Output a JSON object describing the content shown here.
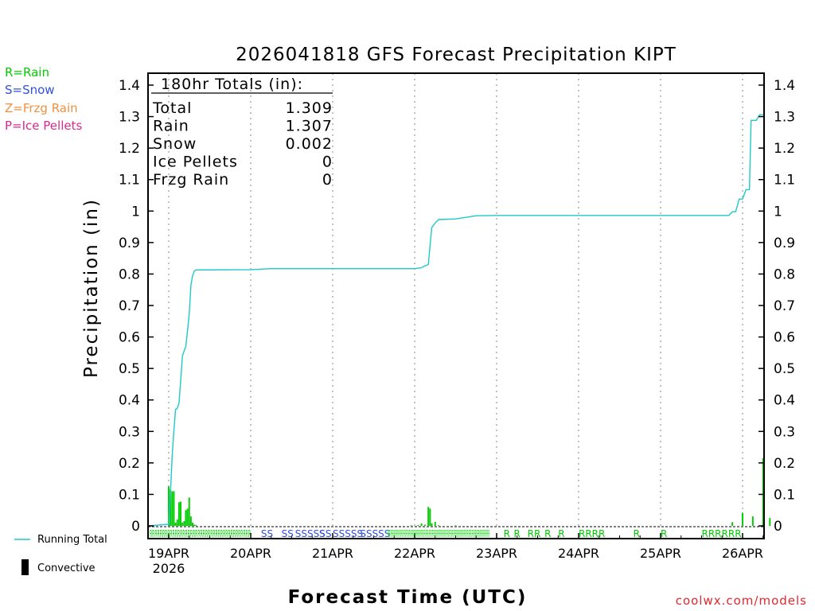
{
  "chart_data": {
    "type": "bar",
    "title": "2026041818 GFS Forecast Precipitation KIPT",
    "xlabel": "Forecast Time (UTC)",
    "ylabel": "Precipitation (in)",
    "ylim": [
      0,
      1.4
    ],
    "yticks": [
      "0",
      "0.1",
      "0.2",
      "0.3",
      "0.4",
      "0.5",
      "0.6",
      "0.7",
      "0.8",
      "0.9",
      "1",
      "1.1",
      "1.2",
      "1.3",
      "1.4"
    ],
    "x_range_hours": [
      0,
      180
    ],
    "xticks": [
      {
        "hour": 6,
        "label": "19APR"
      },
      {
        "hour": 30,
        "label": "20APR"
      },
      {
        "hour": 54,
        "label": "21APR"
      },
      {
        "hour": 78,
        "label": "22APR"
      },
      {
        "hour": 102,
        "label": "23APR"
      },
      {
        "hour": 126,
        "label": "24APR"
      },
      {
        "hour": 150,
        "label": "25APR"
      },
      {
        "hour": 174,
        "label": "26APR"
      }
    ],
    "year_label": "2026",
    "type_legend": [
      {
        "text": "R=Rain",
        "color": "#00cc00"
      },
      {
        "text": "S=Snow",
        "color": "#3050e0"
      },
      {
        "text": "Z=Frzg Rain",
        "color": "#f09040"
      },
      {
        "text": "P=Ice Pellets",
        "color": "#e02890"
      }
    ],
    "series_legend": {
      "running_total": "Running Total",
      "convective": "Convective"
    },
    "totals": {
      "header": "180hr Totals (in):",
      "rows": [
        {
          "label": "Total",
          "value": "1.309"
        },
        {
          "label": "Rain",
          "value": "1.307"
        },
        {
          "label": "Snow",
          "value": "0.002"
        },
        {
          "label": "Ice Pellets",
          "value": "0"
        },
        {
          "label": "Frzg Rain",
          "value": "0"
        }
      ]
    },
    "bars": [
      {
        "hour": 6.0,
        "value": 0.125
      },
      {
        "hour": 6.5,
        "value": 0.115
      },
      {
        "hour": 7.0,
        "value": 0.11
      },
      {
        "hour": 7.5,
        "value": 0.11
      },
      {
        "hour": 8.0,
        "value": 0.01
      },
      {
        "hour": 8.5,
        "value": 0.02
      },
      {
        "hour": 9.0,
        "value": 0.075
      },
      {
        "hour": 9.5,
        "value": 0.077
      },
      {
        "hour": 10.0,
        "value": 0.01
      },
      {
        "hour": 10.5,
        "value": 0.015
      },
      {
        "hour": 11.0,
        "value": 0.05
      },
      {
        "hour": 11.5,
        "value": 0.055
      },
      {
        "hour": 12.0,
        "value": 0.09
      },
      {
        "hour": 12.5,
        "value": 0.03
      },
      {
        "hour": 13.0,
        "value": 0.01
      },
      {
        "hour": 13.5,
        "value": 0.004
      },
      {
        "hour": 14.0,
        "value": 0.003
      },
      {
        "hour": 77.0,
        "value": 0.002
      },
      {
        "hour": 79.0,
        "value": 0.003
      },
      {
        "hour": 80.0,
        "value": 0.008
      },
      {
        "hour": 81.0,
        "value": 0.004
      },
      {
        "hour": 82.0,
        "value": 0.06
      },
      {
        "hour": 82.5,
        "value": 0.055
      },
      {
        "hour": 83.0,
        "value": 0.008
      },
      {
        "hour": 84.0,
        "value": 0.013
      },
      {
        "hour": 85.0,
        "value": 0.002
      },
      {
        "hour": 90.0,
        "value": 0.002
      },
      {
        "hour": 171.0,
        "value": 0.012
      },
      {
        "hour": 174.0,
        "value": 0.042
      },
      {
        "hour": 177.0,
        "value": 0.03
      },
      {
        "hour": 180.0,
        "value": 0.215
      },
      {
        "hour": 182.0,
        "value": 0.025
      }
    ],
    "running_total": [
      [
        0,
        0
      ],
      [
        6,
        0.005
      ],
      [
        6.5,
        0.1
      ],
      [
        7,
        0.22
      ],
      [
        7.5,
        0.3
      ],
      [
        8,
        0.37
      ],
      [
        8.5,
        0.373
      ],
      [
        9,
        0.39
      ],
      [
        9.5,
        0.46
      ],
      [
        10,
        0.54
      ],
      [
        10.5,
        0.555
      ],
      [
        11,
        0.57
      ],
      [
        11.5,
        0.62
      ],
      [
        12,
        0.675
      ],
      [
        12.5,
        0.765
      ],
      [
        13,
        0.795
      ],
      [
        13.5,
        0.81
      ],
      [
        14,
        0.813
      ],
      [
        30,
        0.814
      ],
      [
        36,
        0.817
      ],
      [
        78,
        0.817
      ],
      [
        80,
        0.82
      ],
      [
        81,
        0.826
      ],
      [
        82,
        0.83
      ],
      [
        82.5,
        0.89
      ],
      [
        83,
        0.948
      ],
      [
        84,
        0.962
      ],
      [
        85,
        0.973
      ],
      [
        90,
        0.975
      ],
      [
        96,
        0.985
      ],
      [
        102,
        0.986
      ],
      [
        170,
        0.986
      ],
      [
        171,
        0.998
      ],
      [
        172,
        0.998
      ],
      [
        173,
        1.038
      ],
      [
        174,
        1.038
      ],
      [
        175,
        1.068
      ],
      [
        176,
        1.068
      ],
      [
        176.5,
        1.288
      ],
      [
        178,
        1.288
      ],
      [
        179,
        1.306
      ],
      [
        180,
        1.306
      ]
    ],
    "precip_type_row": [
      {
        "hour": 0,
        "text": "RRRRRRRRRRRRRRRRRRRRRRRRRRRRRRRRRRRRRRRR",
        "color": "#00cc00",
        "span": 30
      },
      {
        "hour": 33,
        "text": "SS",
        "color": "#3050e0"
      },
      {
        "hour": 39,
        "text": "SS",
        "color": "#3050e0"
      },
      {
        "hour": 43,
        "text": "SSSSSS",
        "color": "#3050e0"
      },
      {
        "hour": 50,
        "text": "S",
        "color": "#3050e0"
      },
      {
        "hour": 54,
        "text": "SSSSS",
        "color": "#3050e0"
      },
      {
        "hour": 62,
        "text": "SSSSS",
        "color": "#3050e0"
      },
      {
        "hour": 70,
        "text": "RRRRRRRRRRRRRRRRRRRRRRRRRRRRRRRRRRRRRRRRRRRRRRRRRRRRRRRRRRRRRR",
        "color": "#00cc00",
        "span": 30
      },
      {
        "hour": 104,
        "text": "R",
        "color": "#00cc00"
      },
      {
        "hour": 107,
        "text": "R",
        "color": "#00cc00"
      },
      {
        "hour": 111,
        "text": "RR",
        "color": "#00cc00"
      },
      {
        "hour": 116,
        "text": "R",
        "color": "#00cc00"
      },
      {
        "hour": 120,
        "text": "R",
        "color": "#00cc00"
      },
      {
        "hour": 126,
        "text": "RRRR",
        "color": "#00cc00"
      },
      {
        "hour": 142,
        "text": "R",
        "color": "#00cc00"
      },
      {
        "hour": 150,
        "text": "R",
        "color": "#00cc00"
      },
      {
        "hour": 162,
        "text": "RRRRRR",
        "color": "#00cc00"
      }
    ],
    "colors": {
      "running_total": "#20c8c8",
      "bars": "#00cc00",
      "axis": "#000000",
      "grid": "#999999"
    }
  },
  "watermark": "coolwx.com/models"
}
